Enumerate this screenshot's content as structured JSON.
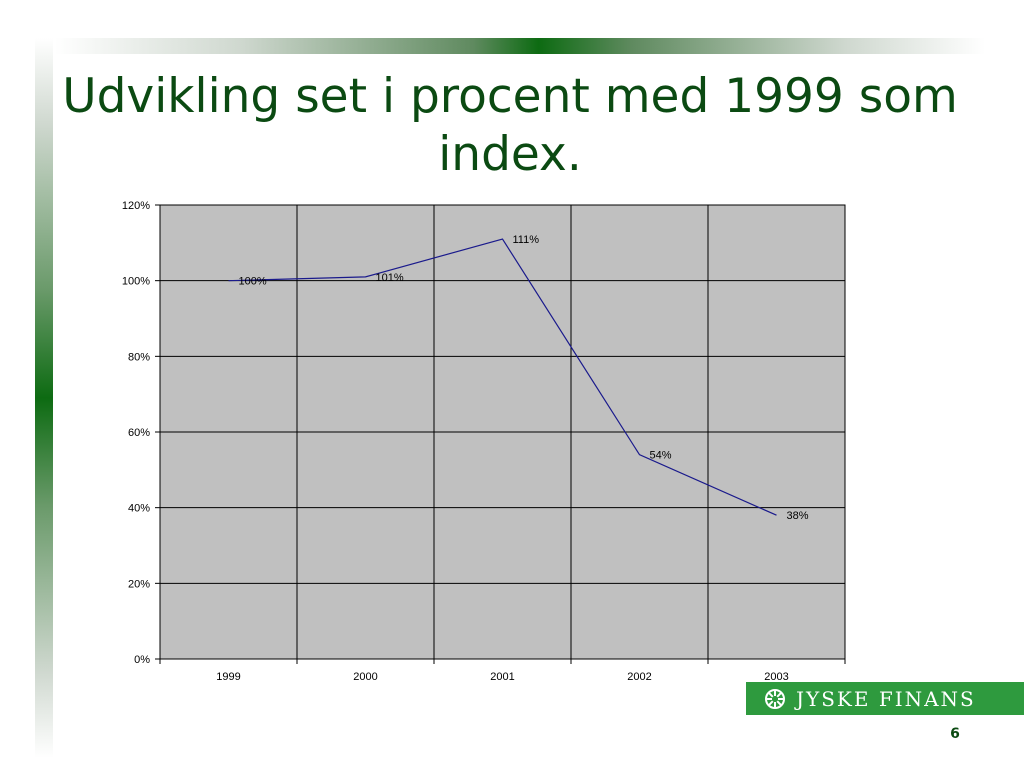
{
  "slide": {
    "title": "Udvikling set i procent med 1999 som index.",
    "page_number": "6"
  },
  "logo": {
    "text": "JYSKE FINANS"
  },
  "colors": {
    "accent_green": "#0b4a12",
    "plot_background": "#c0c0c0",
    "series_line": "#1a1a8c",
    "logo_green": "#2e9a3e"
  },
  "chart_data": {
    "type": "line",
    "categories": [
      "1999",
      "2000",
      "2001",
      "2002",
      "2003"
    ],
    "values": [
      100,
      101,
      111,
      54,
      38
    ],
    "data_labels": [
      "100%",
      "101%",
      "111%",
      "54%",
      "38%"
    ],
    "y_ticks": [
      0,
      20,
      40,
      60,
      80,
      100,
      120
    ],
    "y_tick_labels": [
      "0%",
      "20%",
      "40%",
      "60%",
      "80%",
      "100%",
      "120%"
    ],
    "ylim": [
      0,
      120
    ],
    "grid": true,
    "legend": "none",
    "title": "",
    "xlabel": "",
    "ylabel": ""
  }
}
